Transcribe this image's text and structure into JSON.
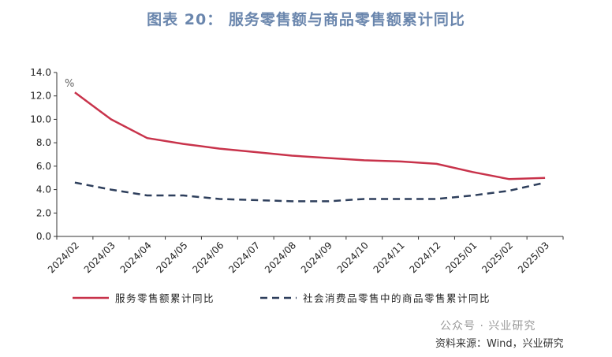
{
  "chart_data": {
    "type": "line",
    "title": "图表 20： 服务零售额与商品零售额累计同比",
    "ylabel": "%",
    "xlabel": "",
    "ylim": [
      0,
      14
    ],
    "yticks": [
      "14.0",
      "12.0",
      "10.0",
      "8.0",
      "6.0",
      "4.0",
      "2.0",
      "0.0"
    ],
    "categories": [
      "2024/02",
      "2024/03",
      "2024/04",
      "2024/05",
      "2024/06",
      "2024/07",
      "2024/08",
      "2024/09",
      "2024/10",
      "2024/11",
      "2024/12",
      "2025/01",
      "2025/02",
      "2025/03"
    ],
    "series": [
      {
        "name": "服务零售额累计同比",
        "color": "#c8334b",
        "style": "solid",
        "values": [
          12.3,
          10.0,
          8.4,
          7.9,
          7.5,
          7.2,
          6.9,
          6.7,
          6.5,
          6.4,
          6.2,
          5.5,
          4.9,
          5.0
        ]
      },
      {
        "name": "社会消费品零售中的商品零售累计同比",
        "color": "#2e3f5c",
        "style": "dashed",
        "values": [
          4.6,
          4.0,
          3.5,
          3.5,
          3.2,
          3.1,
          3.0,
          3.0,
          3.2,
          3.2,
          3.2,
          3.5,
          3.9,
          4.6
        ]
      }
    ],
    "grid": false,
    "legend_position": "bottom"
  },
  "footer": {
    "watermark": "公众号 · 兴业研究",
    "source": "资料来源：Wind，兴业研究"
  }
}
